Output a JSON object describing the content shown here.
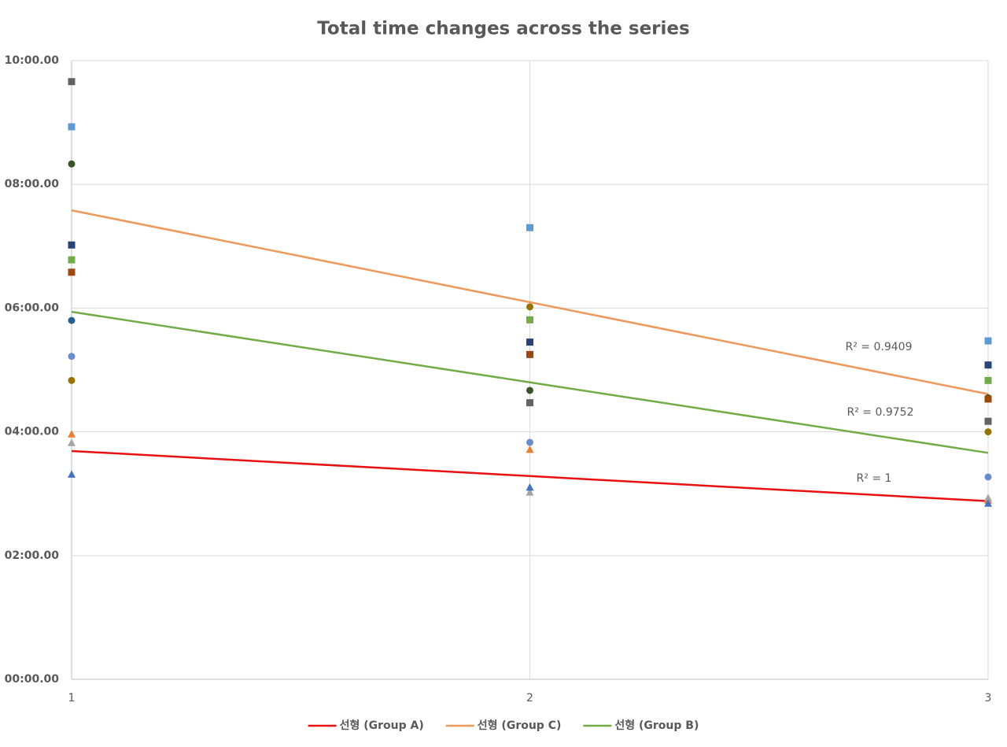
{
  "chart_data": {
    "type": "scatter",
    "title": "Total time changes across the series",
    "x": [
      1,
      2,
      3
    ],
    "xlim": [
      1,
      3
    ],
    "xticks": [
      1,
      2,
      3
    ],
    "ylim": [
      0,
      10
    ],
    "yticks": [
      {
        "value": 0,
        "label": "00:00.00"
      },
      {
        "value": 2,
        "label": "02:00.00"
      },
      {
        "value": 4,
        "label": "04:00.00"
      },
      {
        "value": 6,
        "label": "06:00.00"
      },
      {
        "value": 8,
        "label": "08:00.00"
      },
      {
        "value": 10,
        "label": "10:00.00"
      }
    ],
    "grid": true,
    "legend": "bottom",
    "series": [
      {
        "color": "#ed7d31",
        "marker": "triangle",
        "values": [
          3.96,
          3.71,
          2.89
        ]
      },
      {
        "color": "#a5a5a5",
        "marker": "triangle",
        "values": [
          3.82,
          3.02,
          2.93
        ]
      },
      {
        "color": "#4472c4",
        "marker": "triangle",
        "values": [
          3.31,
          3.1,
          2.84
        ]
      },
      {
        "color": "#375623",
        "marker": "circle",
        "values": [
          8.33,
          4.67,
          4.55
        ]
      },
      {
        "color": "#255e91",
        "marker": "circle",
        "values": [
          5.8,
          null,
          null
        ]
      },
      {
        "color": "#698ed0",
        "marker": "circle",
        "values": [
          5.22,
          3.83,
          3.27
        ]
      },
      {
        "color": "#997300",
        "marker": "circle",
        "values": [
          4.83,
          6.02,
          4.0
        ]
      },
      {
        "color": "#636363",
        "marker": "square",
        "values": [
          9.66,
          4.47,
          4.17
        ]
      },
      {
        "color": "#5b9bd5",
        "marker": "square",
        "values": [
          8.93,
          7.3,
          5.47
        ]
      },
      {
        "color": "#264478",
        "marker": "square",
        "values": [
          7.02,
          5.45,
          5.08
        ]
      },
      {
        "color": "#70ad47",
        "marker": "square",
        "values": [
          6.78,
          5.81,
          4.83
        ]
      },
      {
        "color": "#9e480e",
        "marker": "square",
        "values": [
          6.58,
          5.25,
          4.53
        ]
      }
    ],
    "trendlines": [
      {
        "name": "선형 (Group A)",
        "color": "#e81010",
        "values": [
          3.69,
          3.285,
          2.88
        ],
        "r2": "R² = 1"
      },
      {
        "name": "선형 (Group C)",
        "color": "#f0975a",
        "values": [
          7.58,
          6.095,
          4.61
        ],
        "r2": "R² = 0.9409"
      },
      {
        "name": "선형 (Group B)",
        "color": "#70ad47",
        "values": [
          5.94,
          4.8,
          3.66
        ],
        "r2": "R² = 0.9752"
      }
    ]
  }
}
